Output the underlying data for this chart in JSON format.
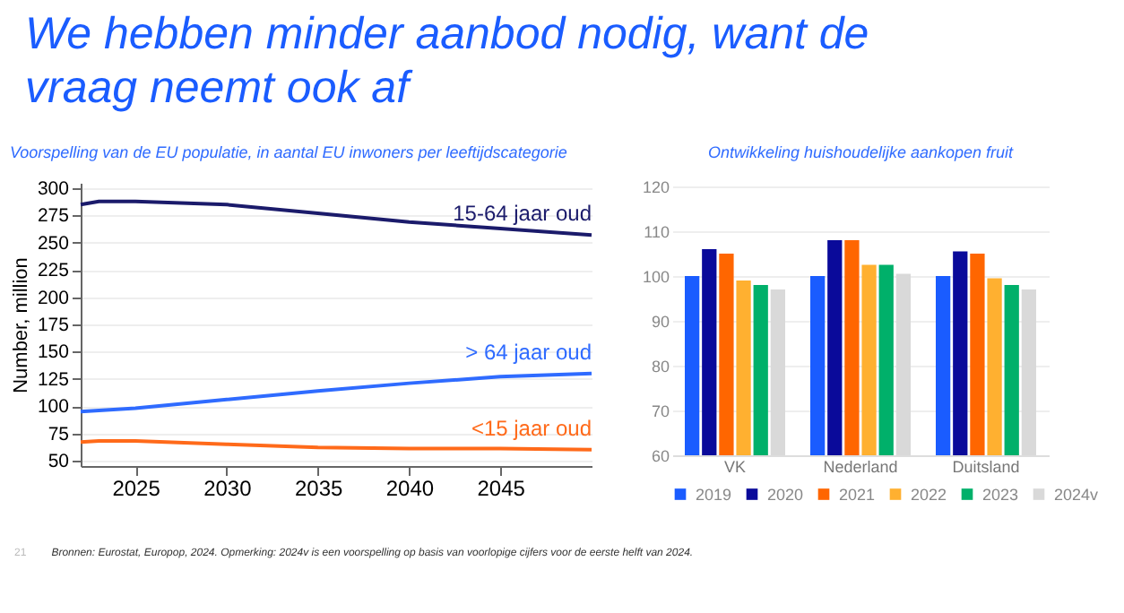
{
  "chart_data": [
    {
      "type": "line",
      "title": "We hebben minder aanbod nodig, want de vraag neemt ook af",
      "subtitle": "Voorspelling van de EU populatie, in aantal EU inwoners per leeftijdscategorie",
      "ylabel": "Number, million",
      "x": [
        2022,
        2023,
        2025,
        2030,
        2035,
        2040,
        2045,
        2050
      ],
      "series": [
        {
          "name": "15-64 jaar oud",
          "color": "#1b1b6b",
          "values": [
            285,
            288,
            288,
            285,
            277,
            269,
            263,
            257
          ]
        },
        {
          "name": "> 64 jaar oud",
          "color": "#2f6bff",
          "values": [
            95,
            96,
            98,
            106,
            114,
            121,
            127,
            130
          ]
        },
        {
          "name": "<15 jaar oud",
          "color": "#ff6a1a",
          "values": [
            67,
            68,
            68,
            65,
            62,
            61,
            61,
            60
          ]
        }
      ],
      "xlim": [
        2022,
        2050
      ],
      "xticks": [
        2025,
        2030,
        2035,
        2040,
        2045
      ],
      "ylim": [
        45,
        305
      ],
      "yticks": [
        50,
        75,
        100,
        125,
        150,
        175,
        200,
        225,
        250,
        275,
        300
      ],
      "grid": "y",
      "legend": false,
      "annotations": [
        "21",
        "Bronnen: Eurostat, Europop, 2024. Opmerking: 2024v is een voorspelling op basis van voorlopige cijfers voor de eerste helft van 2024."
      ]
    },
    {
      "type": "bar",
      "title": "Ontwikkeling huishoudelijke aankopen fruit",
      "categories": [
        "VK",
        "Nederland",
        "Duitsland"
      ],
      "series": [
        {
          "name": "2019",
          "color": "#1a5cff",
          "values": [
            100,
            100,
            100
          ]
        },
        {
          "name": "2020",
          "color": "#0a0a9a",
          "values": [
            106,
            108,
            105.5
          ]
        },
        {
          "name": "2021",
          "color": "#ff6600",
          "values": [
            105,
            108,
            105
          ]
        },
        {
          "name": "2022",
          "color": "#ffb030",
          "values": [
            99,
            102.5,
            99.5
          ]
        },
        {
          "name": "2023",
          "color": "#00b06a",
          "values": [
            98,
            102.5,
            98
          ]
        },
        {
          "name": "2024v",
          "color": "#d9d9d9",
          "values": [
            97,
            100.5,
            97
          ]
        }
      ],
      "ylim": [
        60,
        120
      ],
      "yticks": [
        60,
        70,
        80,
        90,
        100,
        110,
        120
      ],
      "grid": "y",
      "legend": "bottom"
    }
  ]
}
